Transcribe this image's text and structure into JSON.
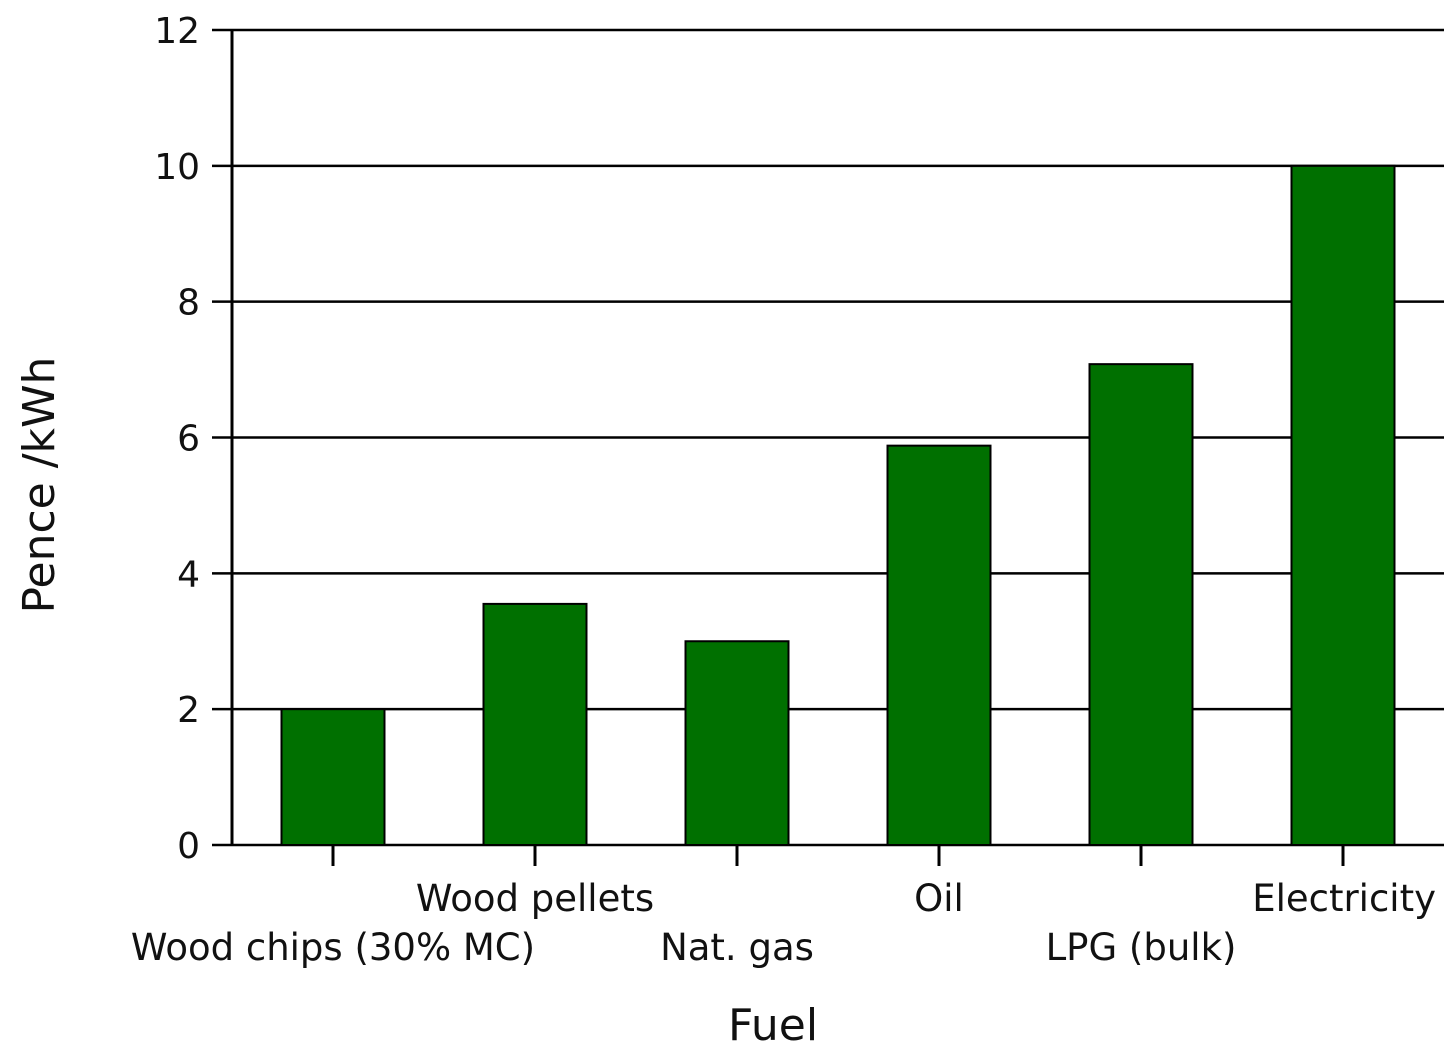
{
  "chart_data": {
    "type": "bar",
    "categories": [
      "Wood chips (30% MC)",
      "Wood pellets",
      "Nat. gas",
      "Oil",
      "LPG (bulk)",
      "Electricity"
    ],
    "values": [
      2.0,
      3.55,
      3.0,
      5.88,
      7.08,
      10.0
    ],
    "xlabel": "Fuel",
    "ylabel": "Pence /kWh",
    "ylim": [
      0,
      12
    ],
    "yticks": [
      0,
      2,
      4,
      6,
      8,
      10,
      12
    ],
    "grid": true,
    "bar_color": "#007000",
    "label_stagger": [
      false,
      true,
      false,
      true,
      false,
      true
    ]
  }
}
